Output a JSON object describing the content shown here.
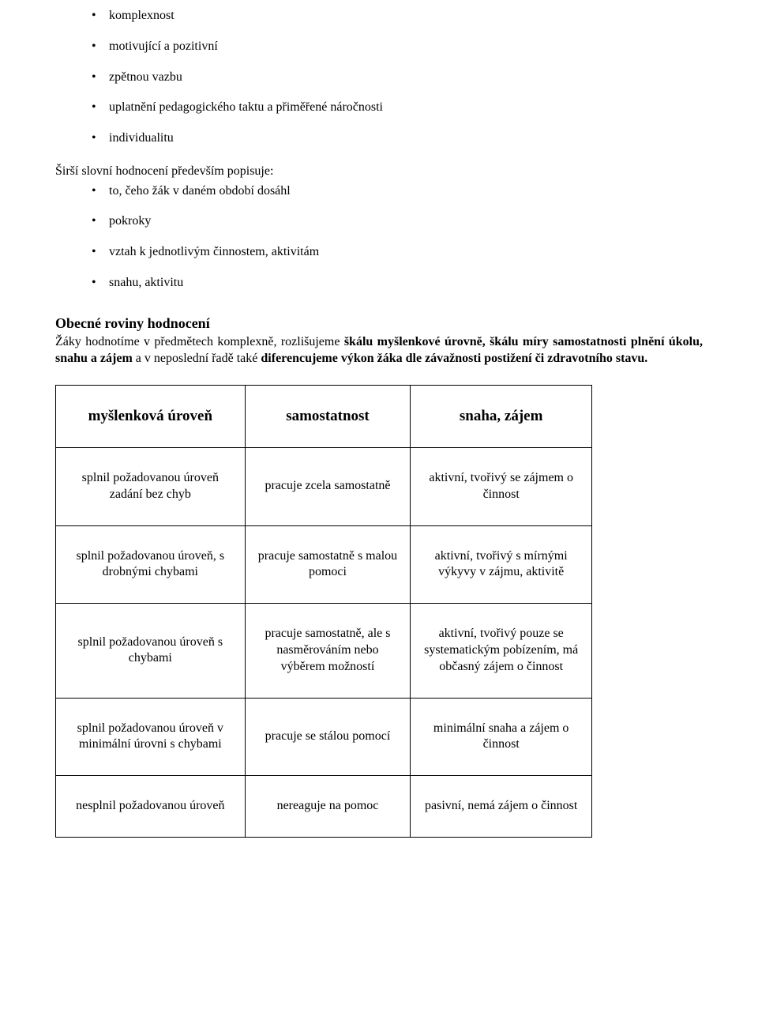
{
  "top_bullets": [
    "komplexnost",
    "motivující a pozitivní",
    "zpětnou vazbu",
    "uplatnění pedagogického taktu a přiměřené náročnosti",
    "individualitu"
  ],
  "intro_line": "Širší slovní hodnocení především popisuje:",
  "sub_bullets": [
    "to, čeho žák v daném období dosáhl",
    "pokroky",
    "vztah k jednotlivým činnostem, aktivitám",
    "snahu, aktivitu"
  ],
  "section_heading": "Obecné  roviny hodnocení",
  "body_text": {
    "p1": "Žáky hodnotíme v předmětech komplexně, rozlišujeme ",
    "b1": "škálu myšlenkové úrovně, škálu míry samostatnosti plnění úkolu, snahu a zájem",
    "p2": " a v neposlední řadě také ",
    "b2": "diferencujeme výkon žáka dle závažnosti postižení či zdravotního stavu."
  },
  "table": {
    "headers": [
      "myšlenková úroveň",
      "samostatnost",
      "snaha, zájem"
    ],
    "rows": [
      [
        "splnil požadovanou úroveň zadání bez chyb",
        "pracuje zcela samostatně",
        "aktivní, tvořivý se zájmem o činnost"
      ],
      [
        "splnil požadovanou úroveň, s drobnými chybami",
        "pracuje samostatně s malou pomoci",
        "aktivní, tvořivý s mírnými výkyvy v zájmu, aktivitě"
      ],
      [
        "splnil požadovanou úroveň s chybami",
        "pracuje samostatně, ale s nasměrováním nebo výběrem možností",
        "aktivní, tvořivý pouze se systematickým pobízením, má občasný zájem o činnost"
      ],
      [
        "splnil požadovanou úroveň v minimální úrovni s chybami",
        "pracuje se stálou pomocí",
        "minimální snaha a zájem o činnost"
      ],
      [
        "nesplnil požadovanou úroveň",
        "nereaguje na pomoc",
        "pasivní, nemá zájem o činnost"
      ]
    ]
  }
}
